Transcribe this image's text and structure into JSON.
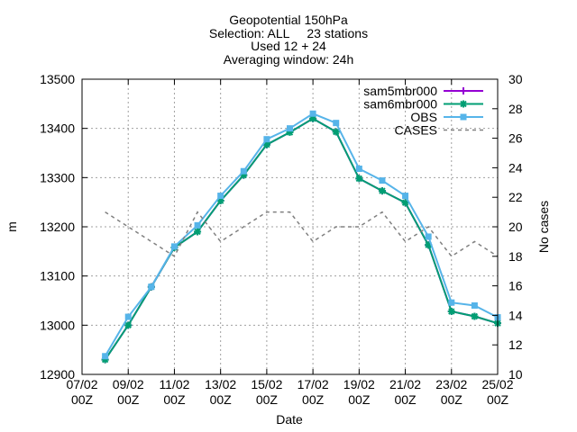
{
  "chart_data": {
    "type": "line",
    "title_lines": [
      "Geopotential 150hPa",
      "Selection: ALL     23 stations",
      "Used 12 + 24",
      "Averaging window: 24h"
    ],
    "xlabel": "Date",
    "ylabel": "m",
    "y2label": "No cases",
    "ylim": [
      12900,
      13500
    ],
    "y2lim": [
      10,
      30
    ],
    "xlim_days": [
      0,
      18
    ],
    "yticks": [
      "12900",
      "13000",
      "13100",
      "13200",
      "13300",
      "13400",
      "13500"
    ],
    "y2ticks": [
      "10",
      "12",
      "14",
      "16",
      "18",
      "20",
      "22",
      "24",
      "26",
      "28",
      "30"
    ],
    "xticks": [
      {
        "day": 0,
        "l1": "07/02",
        "l2": "00Z"
      },
      {
        "day": 2,
        "l1": "09/02",
        "l2": "00Z"
      },
      {
        "day": 4,
        "l1": "11/02",
        "l2": "00Z"
      },
      {
        "day": 6,
        "l1": "13/02",
        "l2": "00Z"
      },
      {
        "day": 8,
        "l1": "15/02",
        "l2": "00Z"
      },
      {
        "day": 10,
        "l1": "17/02",
        "l2": "00Z"
      },
      {
        "day": 12,
        "l1": "19/02",
        "l2": "00Z"
      },
      {
        "day": 14,
        "l1": "21/02",
        "l2": "00Z"
      },
      {
        "day": 16,
        "l1": "23/02",
        "l2": "00Z"
      },
      {
        "day": 18,
        "l1": "25/02",
        "l2": "00Z"
      }
    ],
    "x_days": [
      1,
      2,
      3,
      4,
      5,
      6,
      7,
      8,
      9,
      10,
      11,
      12,
      13,
      14,
      15,
      16,
      17,
      18
    ],
    "grid": true,
    "legend_position": "top-right",
    "series": [
      {
        "name": "sam5mbr000",
        "axis": "y1",
        "color": "#9400d3",
        "marker": "plus",
        "values": [
          12930,
          13000,
          13078,
          13158,
          13190,
          13253,
          13305,
          13367,
          13392,
          13420,
          13393,
          13298,
          13273,
          13249,
          13163,
          13028,
          13018,
          13004
        ]
      },
      {
        "name": "sam6mbr000",
        "axis": "y1",
        "color": "#009e73",
        "marker": "star",
        "values": [
          12930,
          13000,
          13078,
          13158,
          13190,
          13253,
          13305,
          13367,
          13392,
          13420,
          13393,
          13298,
          13273,
          13249,
          13163,
          13028,
          13018,
          13004
        ]
      },
      {
        "name": "OBS",
        "axis": "y1",
        "color": "#56b4e9",
        "marker": "box",
        "values": [
          12937,
          13017,
          13078,
          13160,
          13203,
          13263,
          13313,
          13378,
          13400,
          13430,
          13411,
          13318,
          13294,
          13263,
          13180,
          13046,
          13040,
          13016
        ]
      },
      {
        "name": "CASES",
        "axis": "y2",
        "color": "#808080",
        "dash": true,
        "values": [
          21,
          20,
          19,
          18,
          21,
          19,
          20,
          21,
          21,
          19,
          20,
          20,
          21,
          19,
          20,
          18,
          19,
          18
        ]
      }
    ]
  }
}
